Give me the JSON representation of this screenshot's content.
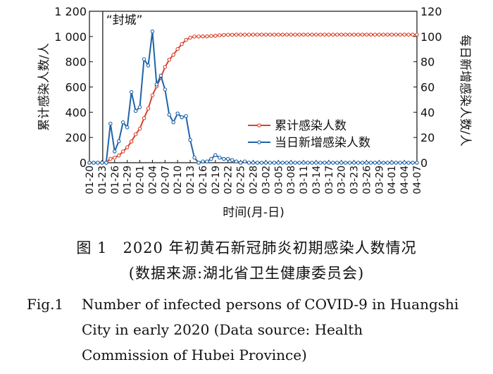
{
  "chart_data": {
    "type": "line",
    "annotation": "“封城”",
    "xlabel": "时间(月-日)",
    "ylabel_left": "累计感染人数/人",
    "ylabel_right": "每日新增感染人数/人",
    "ylim_left": [
      0,
      1200
    ],
    "ylim_right": [
      0,
      120
    ],
    "yticks_left": [
      "0",
      "200",
      "400",
      "600",
      "800",
      "1 000",
      "1 200"
    ],
    "yticks_right": [
      "0",
      "20",
      "40",
      "60",
      "80",
      "100",
      "120"
    ],
    "x_tick_labels": [
      "01-20",
      "01-23",
      "01-26",
      "01-29",
      "02-01",
      "02-04",
      "02-07",
      "02-10",
      "02-13",
      "02-16",
      "02-19",
      "02-22",
      "02-25",
      "02-28",
      "03-02",
      "03-05",
      "03-08",
      "03-11",
      "03-14",
      "03-17",
      "03-20",
      "03-23",
      "03-26",
      "03-29",
      "04-01",
      "04-04",
      "04-07"
    ],
    "x_tick_days": [
      0,
      3,
      6,
      9,
      12,
      15,
      18,
      21,
      24,
      27,
      30,
      33,
      36,
      39,
      42,
      45,
      48,
      51,
      54,
      57,
      60,
      63,
      66,
      69,
      72,
      75,
      78
    ],
    "x_range": [
      0,
      78
    ],
    "lockdown_day": 3,
    "legend_position": "right",
    "series": [
      {
        "name": "累计感染人数",
        "axis": "left",
        "color": "#d8432c",
        "x": [
          0,
          1,
          2,
          3,
          4,
          5,
          6,
          7,
          8,
          9,
          10,
          11,
          12,
          13,
          14,
          15,
          16,
          17,
          18,
          19,
          20,
          21,
          22,
          23,
          24,
          25,
          26,
          27,
          28,
          29,
          30,
          31,
          32,
          33,
          34,
          35,
          36,
          37,
          38,
          39,
          40,
          41,
          42,
          43,
          44,
          45,
          46,
          47,
          48,
          49,
          50,
          51,
          52,
          53,
          54,
          55,
          56,
          57,
          58,
          59,
          60,
          61,
          62,
          63,
          64,
          65,
          66,
          67,
          68,
          69,
          70,
          71,
          72,
          73,
          74,
          75,
          76,
          77,
          78
        ],
        "values": [
          0,
          0,
          0,
          0,
          0,
          31,
          40,
          57,
          89,
          122,
          168,
          225,
          269,
          353,
          430,
          534,
          605,
          674,
          758,
          816,
          855,
          901,
          940,
          973,
          991,
          1000,
          1000,
          1001,
          1001,
          1004,
          1006,
          1010,
          1012,
          1014,
          1014,
          1015,
          1015,
          1015,
          1015,
          1015,
          1015,
          1015,
          1015,
          1015,
          1015,
          1015,
          1015,
          1015,
          1015,
          1015,
          1015,
          1015,
          1015,
          1015,
          1015,
          1015,
          1015,
          1015,
          1015,
          1015,
          1015,
          1015,
          1015,
          1015,
          1015,
          1015,
          1015,
          1015,
          1015,
          1015,
          1015,
          1015,
          1015,
          1015,
          1015,
          1015,
          1015,
          1015,
          1015
        ]
      },
      {
        "name": "当日新增感染人数",
        "axis": "right",
        "color": "#1f64a8",
        "x": [
          0,
          1,
          2,
          3,
          4,
          5,
          6,
          7,
          8,
          9,
          10,
          11,
          12,
          13,
          14,
          15,
          16,
          17,
          18,
          19,
          20,
          21,
          22,
          23,
          24,
          25,
          26,
          27,
          28,
          29,
          30,
          31,
          32,
          33,
          34,
          35,
          36,
          37,
          38,
          39,
          40,
          41,
          42,
          43,
          44,
          45,
          46,
          47,
          48,
          49,
          50,
          51,
          52,
          53,
          54,
          55,
          56,
          57,
          58,
          59,
          60,
          61,
          62,
          63,
          64,
          65,
          66,
          67,
          68,
          69,
          70,
          71,
          72,
          73,
          74,
          75,
          76,
          77,
          78
        ],
        "values": [
          0,
          0,
          0,
          0,
          0,
          31,
          9,
          17,
          32,
          28,
          56,
          41,
          44,
          82,
          77,
          104,
          62,
          69,
          58,
          38,
          32,
          39,
          36,
          37,
          18,
          4,
          0,
          1,
          1,
          3,
          6,
          4,
          3,
          3,
          2,
          1,
          0,
          1,
          0,
          0,
          0,
          0,
          0,
          0,
          0,
          0,
          0,
          0,
          0,
          0,
          0,
          0,
          0,
          0,
          0,
          0,
          0,
          0,
          0,
          0,
          0,
          0,
          0,
          0,
          0,
          0,
          0,
          0,
          0,
          0,
          0,
          0,
          0,
          0,
          0,
          0,
          0,
          0,
          0
        ]
      }
    ]
  },
  "caption": {
    "cn_line1": "图 1　2020 年初黄石新冠肺炎初期感染人数情况",
    "cn_line2": "(数据来源:湖北省卫生健康委员会)",
    "en_num": "Fig.1",
    "en_line1": "Number of infected persons of COVID-9 in Huangshi",
    "en_line2": "City in early 2020 (Data source: Health",
    "en_line3": "Commission of Hubei Province)"
  }
}
